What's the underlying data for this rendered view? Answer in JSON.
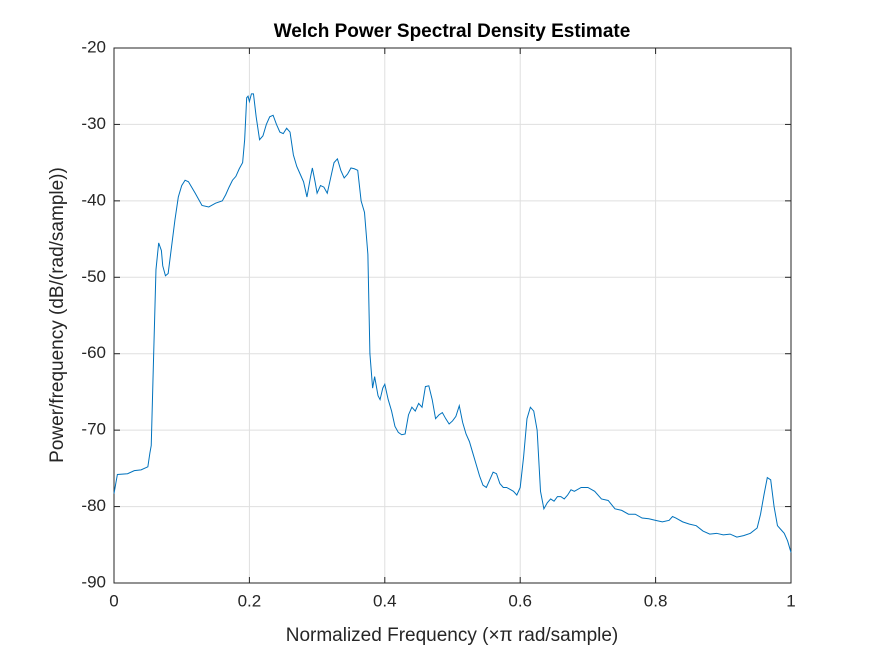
{
  "chart_data": {
    "type": "line",
    "title": "Welch Power Spectral Density Estimate",
    "x_label": "Normalized Frequency  (×π rad/sample)",
    "y_label": "Power/frequency (dB/(rad/sample))",
    "xlim": [
      0,
      1
    ],
    "ylim": [
      -90,
      -20
    ],
    "xticks": [
      0,
      0.2,
      0.4,
      0.6,
      0.8,
      1
    ],
    "yticks": [
      -90,
      -80,
      -70,
      -60,
      -50,
      -40,
      -30,
      -20
    ],
    "grid": true,
    "x": [
      0,
      0.005,
      0.02,
      0.03,
      0.04,
      0.05,
      0.053,
      0.055,
      0.058,
      0.062,
      0.066,
      0.07,
      0.072,
      0.076,
      0.08,
      0.085,
      0.09,
      0.095,
      0.1,
      0.105,
      0.11,
      0.12,
      0.13,
      0.14,
      0.15,
      0.16,
      0.165,
      0.17,
      0.175,
      0.18,
      0.185,
      0.19,
      0.193,
      0.196,
      0.198,
      0.2,
      0.203,
      0.206,
      0.21,
      0.215,
      0.22,
      0.225,
      0.23,
      0.235,
      0.24,
      0.245,
      0.25,
      0.255,
      0.26,
      0.265,
      0.27,
      0.275,
      0.28,
      0.285,
      0.29,
      0.293,
      0.297,
      0.3,
      0.305,
      0.31,
      0.315,
      0.32,
      0.325,
      0.33,
      0.335,
      0.34,
      0.345,
      0.35,
      0.355,
      0.36,
      0.365,
      0.37,
      0.375,
      0.378,
      0.382,
      0.385,
      0.39,
      0.393,
      0.397,
      0.4,
      0.405,
      0.41,
      0.415,
      0.42,
      0.425,
      0.43,
      0.435,
      0.44,
      0.445,
      0.45,
      0.455,
      0.46,
      0.465,
      0.47,
      0.475,
      0.48,
      0.485,
      0.49,
      0.495,
      0.5,
      0.505,
      0.51,
      0.515,
      0.52,
      0.525,
      0.53,
      0.535,
      0.54,
      0.545,
      0.55,
      0.555,
      0.56,
      0.565,
      0.57,
      0.575,
      0.58,
      0.59,
      0.595,
      0.6,
      0.605,
      0.61,
      0.615,
      0.62,
      0.625,
      0.63,
      0.635,
      0.64,
      0.645,
      0.65,
      0.655,
      0.66,
      0.665,
      0.67,
      0.675,
      0.68,
      0.69,
      0.7,
      0.71,
      0.72,
      0.73,
      0.74,
      0.75,
      0.76,
      0.77,
      0.78,
      0.79,
      0.8,
      0.81,
      0.82,
      0.825,
      0.83,
      0.84,
      0.85,
      0.86,
      0.87,
      0.88,
      0.89,
      0.9,
      0.91,
      0.92,
      0.93,
      0.94,
      0.95,
      0.955,
      0.96,
      0.965,
      0.97,
      0.975,
      0.98,
      0.985,
      0.99,
      0.995,
      1
    ],
    "series": [
      {
        "color": "#0072BD",
        "values": [
          -78.3,
          -75.8,
          -75.7,
          -75.3,
          -75.2,
          -74.8,
          -73,
          -72,
          -62,
          -49,
          -45.5,
          -46.5,
          -48.5,
          -49.8,
          -49.5,
          -46,
          -42.5,
          -39.5,
          -38,
          -37.3,
          -37.5,
          -39,
          -40.6,
          -40.8,
          -40.3,
          -40,
          -39.2,
          -38.2,
          -37.3,
          -36.8,
          -35.8,
          -35,
          -32,
          -26.5,
          -26.3,
          -27,
          -26,
          -26,
          -29,
          -32,
          -31.5,
          -30,
          -29,
          -28.8,
          -30,
          -31,
          -31.2,
          -30.5,
          -31,
          -34,
          -35.5,
          -36.5,
          -37.5,
          -39.5,
          -37,
          -35.7,
          -37.5,
          -39,
          -38,
          -38.2,
          -39,
          -37,
          -35,
          -34.5,
          -36,
          -37,
          -36.5,
          -35.7,
          -35.8,
          -36,
          -40,
          -41.5,
          -47,
          -60,
          -64.5,
          -63,
          -65.5,
          -66,
          -64.5,
          -64,
          -66,
          -67.5,
          -69.5,
          -70.3,
          -70.6,
          -70.5,
          -68,
          -67,
          -67.5,
          -66.5,
          -67,
          -64.3,
          -64.2,
          -66,
          -68.5,
          -68,
          -67.7,
          -68.5,
          -69.2,
          -68.8,
          -68.2,
          -66.8,
          -69,
          -70.5,
          -71.5,
          -73,
          -74.5,
          -76,
          -77.2,
          -77.5,
          -76.5,
          -75.5,
          -75.7,
          -77,
          -77.5,
          -77.5,
          -78,
          -78.5,
          -77.5,
          -73.5,
          -68.5,
          -67,
          -67.5,
          -70,
          -78,
          -80.3,
          -79.5,
          -79,
          -79.3,
          -78.7,
          -78.7,
          -79,
          -78.5,
          -77.8,
          -78,
          -77.5,
          -77.5,
          -78,
          -79,
          -79.2,
          -80.3,
          -80.5,
          -81,
          -81,
          -81.5,
          -81.6,
          -81.8,
          -82,
          -81.8,
          -81.3,
          -81.5,
          -82,
          -82.3,
          -82.5,
          -83.2,
          -83.6,
          -83.5,
          -83.7,
          -83.6,
          -84,
          -83.8,
          -83.5,
          -82.8,
          -81,
          -78.5,
          -76.2,
          -76.5,
          -80,
          -82.5,
          -83,
          -83.5,
          -84.5,
          -86
        ]
      }
    ]
  }
}
